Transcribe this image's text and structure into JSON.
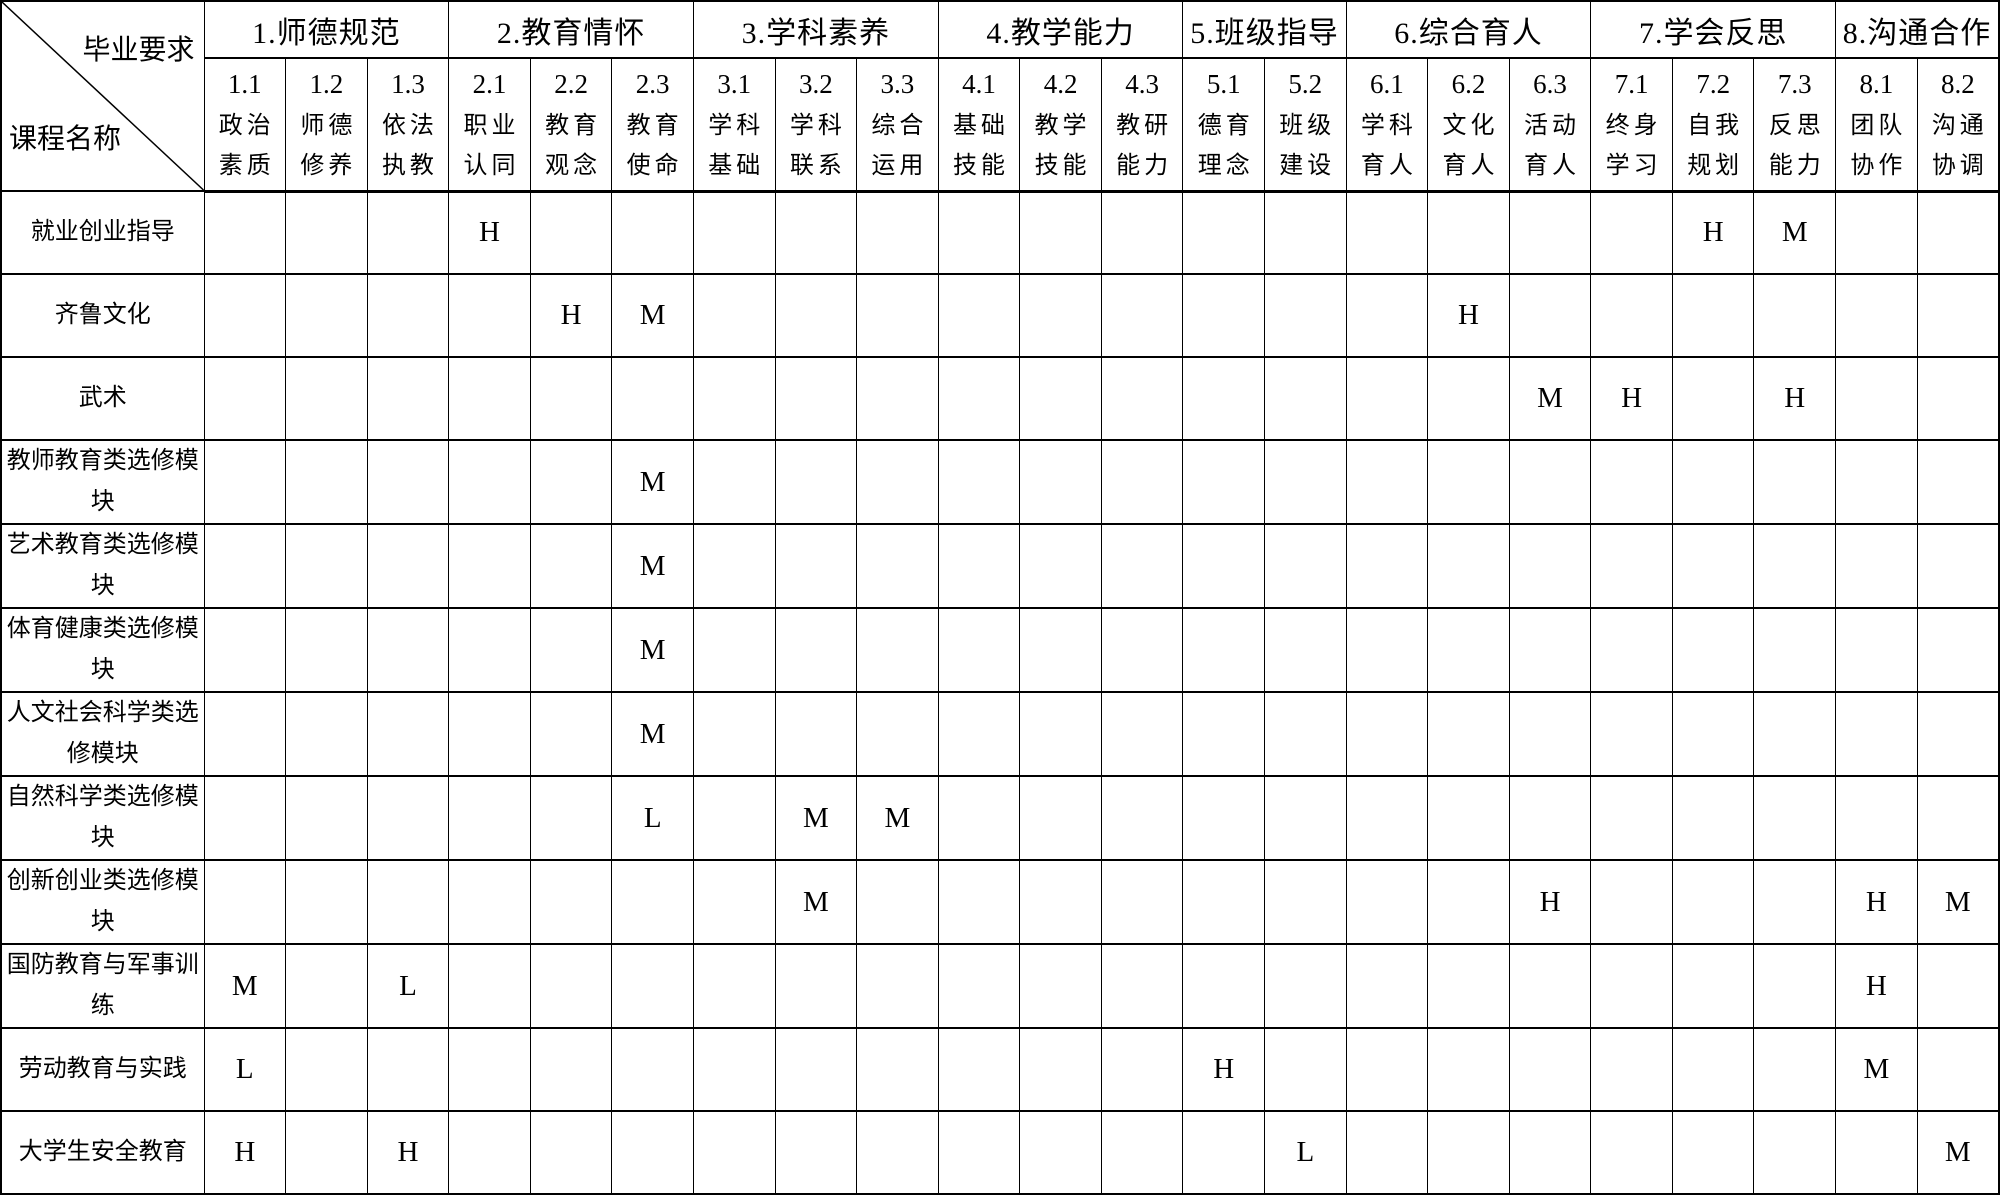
{
  "colors": {
    "border": "#000000",
    "background": "#ffffff",
    "text": "#000000"
  },
  "table": {
    "corner": {
      "top_right": "毕业要求",
      "bottom_left": "课程名称"
    },
    "column_keys": [
      "1.1",
      "1.2",
      "1.3",
      "2.1",
      "2.2",
      "2.3",
      "3.1",
      "3.2",
      "3.3",
      "4.1",
      "4.2",
      "4.3",
      "5.1",
      "5.2",
      "6.1",
      "6.2",
      "6.3",
      "7.1",
      "7.2",
      "7.3",
      "8.1",
      "8.2"
    ],
    "groups": [
      {
        "label": "1.师德规范",
        "subs": [
          {
            "num": "1.1",
            "name": [
              "政治",
              "素质"
            ]
          },
          {
            "num": "1.2",
            "name": [
              "师德",
              "修养"
            ]
          },
          {
            "num": "1.3",
            "name": [
              "依法",
              "执教"
            ]
          }
        ]
      },
      {
        "label": "2.教育情怀",
        "subs": [
          {
            "num": "2.1",
            "name": [
              "职业",
              "认同"
            ]
          },
          {
            "num": "2.2",
            "name": [
              "教育",
              "观念"
            ]
          },
          {
            "num": "2.3",
            "name": [
              "教育",
              "使命"
            ]
          }
        ]
      },
      {
        "label": "3.学科素养",
        "subs": [
          {
            "num": "3.1",
            "name": [
              "学科",
              "基础"
            ]
          },
          {
            "num": "3.2",
            "name": [
              "学科",
              "联系"
            ]
          },
          {
            "num": "3.3",
            "name": [
              "综合",
              "运用"
            ]
          }
        ]
      },
      {
        "label": "4.教学能力",
        "subs": [
          {
            "num": "4.1",
            "name": [
              "基础",
              "技能"
            ]
          },
          {
            "num": "4.2",
            "name": [
              "教学",
              "技能"
            ]
          },
          {
            "num": "4.3",
            "name": [
              "教研",
              "能力"
            ]
          }
        ]
      },
      {
        "label": "5.班级指导",
        "subs": [
          {
            "num": "5.1",
            "name": [
              "德育",
              "理念"
            ]
          },
          {
            "num": "5.2",
            "name": [
              "班级",
              "建设"
            ]
          }
        ]
      },
      {
        "label": "6.综合育人",
        "subs": [
          {
            "num": "6.1",
            "name": [
              "学科",
              "育人"
            ]
          },
          {
            "num": "6.2",
            "name": [
              "文化",
              "育人"
            ]
          },
          {
            "num": "6.3",
            "name": [
              "活动",
              "育人"
            ]
          }
        ]
      },
      {
        "label": "7.学会反思",
        "subs": [
          {
            "num": "7.1",
            "name": [
              "终身",
              "学习"
            ]
          },
          {
            "num": "7.2",
            "name": [
              "自我",
              "规划"
            ]
          },
          {
            "num": "7.3",
            "name": [
              "反思",
              "能力"
            ]
          }
        ]
      },
      {
        "label": "8.沟通合作",
        "subs": [
          {
            "num": "8.1",
            "name": [
              "团队",
              "协作"
            ]
          },
          {
            "num": "8.2",
            "name": [
              "沟通",
              "协调"
            ]
          }
        ]
      }
    ],
    "rows": [
      {
        "name": "就业创业指导",
        "cells": [
          "",
          "",
          "",
          "H",
          "",
          "",
          "",
          "",
          "",
          "",
          "",
          "",
          "",
          "",
          "",
          "",
          "",
          "",
          "H",
          "M",
          "",
          ""
        ]
      },
      {
        "name": "齐鲁文化",
        "cells": [
          "",
          "",
          "",
          "",
          "H",
          "M",
          "",
          "",
          "",
          "",
          "",
          "",
          "",
          "",
          "",
          "H",
          "",
          "",
          "",
          "",
          "",
          ""
        ]
      },
      {
        "name": "武术",
        "cells": [
          "",
          "",
          "",
          "",
          "",
          "",
          "",
          "",
          "",
          "",
          "",
          "",
          "",
          "",
          "",
          "",
          "M",
          "H",
          "",
          "H",
          "",
          ""
        ]
      },
      {
        "name": "教师教育类选修模块",
        "cells": [
          "",
          "",
          "",
          "",
          "",
          "M",
          "",
          "",
          "",
          "",
          "",
          "",
          "",
          "",
          "",
          "",
          "",
          "",
          "",
          "",
          "",
          ""
        ]
      },
      {
        "name": "艺术教育类选修模块",
        "cells": [
          "",
          "",
          "",
          "",
          "",
          "M",
          "",
          "",
          "",
          "",
          "",
          "",
          "",
          "",
          "",
          "",
          "",
          "",
          "",
          "",
          "",
          ""
        ]
      },
      {
        "name": "体育健康类选修模块",
        "cells": [
          "",
          "",
          "",
          "",
          "",
          "M",
          "",
          "",
          "",
          "",
          "",
          "",
          "",
          "",
          "",
          "",
          "",
          "",
          "",
          "",
          "",
          ""
        ]
      },
      {
        "name": "人文社会科学类选修模块",
        "cells": [
          "",
          "",
          "",
          "",
          "",
          "M",
          "",
          "",
          "",
          "",
          "",
          "",
          "",
          "",
          "",
          "",
          "",
          "",
          "",
          "",
          "",
          ""
        ]
      },
      {
        "name": "自然科学类选修模块",
        "cells": [
          "",
          "",
          "",
          "",
          "",
          "L",
          "",
          "M",
          "M",
          "",
          "",
          "",
          "",
          "",
          "",
          "",
          "",
          "",
          "",
          "",
          "",
          ""
        ]
      },
      {
        "name": "创新创业类选修模块",
        "cells": [
          "",
          "",
          "",
          "",
          "",
          "",
          "",
          "M",
          "",
          "",
          "",
          "",
          "",
          "",
          "",
          "",
          "H",
          "",
          "",
          "",
          "H",
          "M"
        ]
      },
      {
        "name": "国防教育与军事训练",
        "cells": [
          "M",
          "",
          "L",
          "",
          "",
          "",
          "",
          "",
          "",
          "",
          "",
          "",
          "",
          "",
          "",
          "",
          "",
          "",
          "",
          "",
          "H",
          ""
        ]
      },
      {
        "name": "劳动教育与实践",
        "cells": [
          "L",
          "",
          "",
          "",
          "",
          "",
          "",
          "",
          "",
          "",
          "",
          "",
          "H",
          "",
          "",
          "",
          "",
          "",
          "",
          "",
          "M",
          ""
        ]
      },
      {
        "name": "大学生安全教育",
        "cells": [
          "H",
          "",
          "H",
          "",
          "",
          "",
          "",
          "",
          "",
          "",
          "",
          "",
          "",
          "L",
          "",
          "",
          "",
          "",
          "",
          "",
          "",
          "M"
        ]
      }
    ]
  }
}
